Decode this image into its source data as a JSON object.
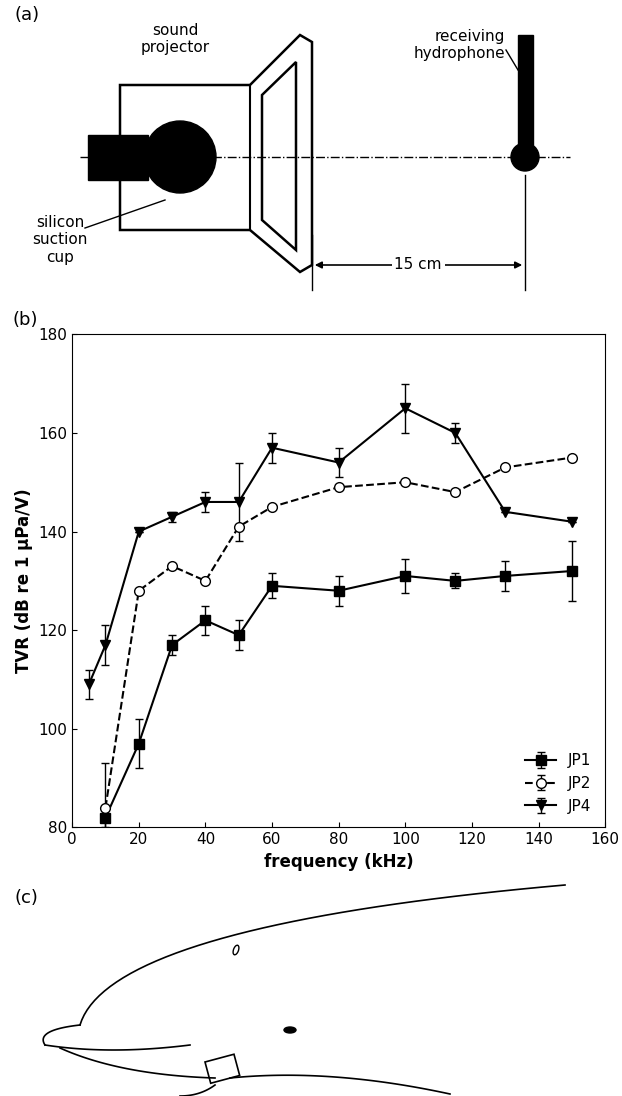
{
  "panel_a": {
    "label": "(a)",
    "sound_projector": "sound\nprojector",
    "suction_cup": "silicon\nsuction\ncup",
    "hydrophone": "receiving\nhydrophone",
    "distance": "15 cm"
  },
  "chart_data": {
    "label": "(b)",
    "type": "line",
    "x_label": "frequency (kHz)",
    "y_label": "TVR (dB re 1 µPa/V)",
    "xlim": [
      0,
      160
    ],
    "xticks": [
      0,
      20,
      40,
      60,
      80,
      100,
      120,
      140,
      160
    ],
    "ylim": [
      80,
      180
    ],
    "yticks": [
      80,
      100,
      120,
      140,
      160,
      180
    ],
    "legend": "lower right",
    "series": [
      {
        "name": "JP1",
        "color": "#000000",
        "marker": "square",
        "line_style": "solid",
        "x": [
          10,
          20,
          30,
          40,
          50,
          60,
          80,
          100,
          115,
          130,
          150
        ],
        "values": [
          82,
          97,
          117,
          122,
          119,
          129,
          128,
          131,
          130,
          131,
          132
        ],
        "errors": [
          2,
          5,
          2,
          3,
          3,
          2.5,
          3,
          3.5,
          1.5,
          3,
          6
        ]
      },
      {
        "name": "JP2",
        "color": "#000000",
        "marker": "circle_open",
        "line_style": "dashed",
        "x": [
          10,
          20,
          30,
          40,
          50,
          60,
          80,
          100,
          115,
          130,
          150
        ],
        "values": [
          84,
          128,
          133,
          130,
          141,
          145,
          149,
          150,
          148,
          153,
          155
        ],
        "errors": [
          9,
          0,
          0,
          0,
          0,
          0,
          0,
          0,
          0,
          0,
          0
        ]
      },
      {
        "name": "JP4",
        "color": "#000000",
        "marker": "triangle_down",
        "line_style": "solid",
        "x": [
          5,
          10,
          20,
          30,
          40,
          50,
          60,
          80,
          100,
          115,
          130,
          150
        ],
        "values": [
          109,
          117,
          140,
          143,
          146,
          146,
          157,
          154,
          165,
          160,
          144,
          142
        ],
        "errors": [
          3,
          4,
          0,
          1,
          2,
          8,
          3,
          3,
          5,
          2,
          0,
          0
        ]
      }
    ]
  },
  "panel_c": {
    "label": "(c)"
  }
}
